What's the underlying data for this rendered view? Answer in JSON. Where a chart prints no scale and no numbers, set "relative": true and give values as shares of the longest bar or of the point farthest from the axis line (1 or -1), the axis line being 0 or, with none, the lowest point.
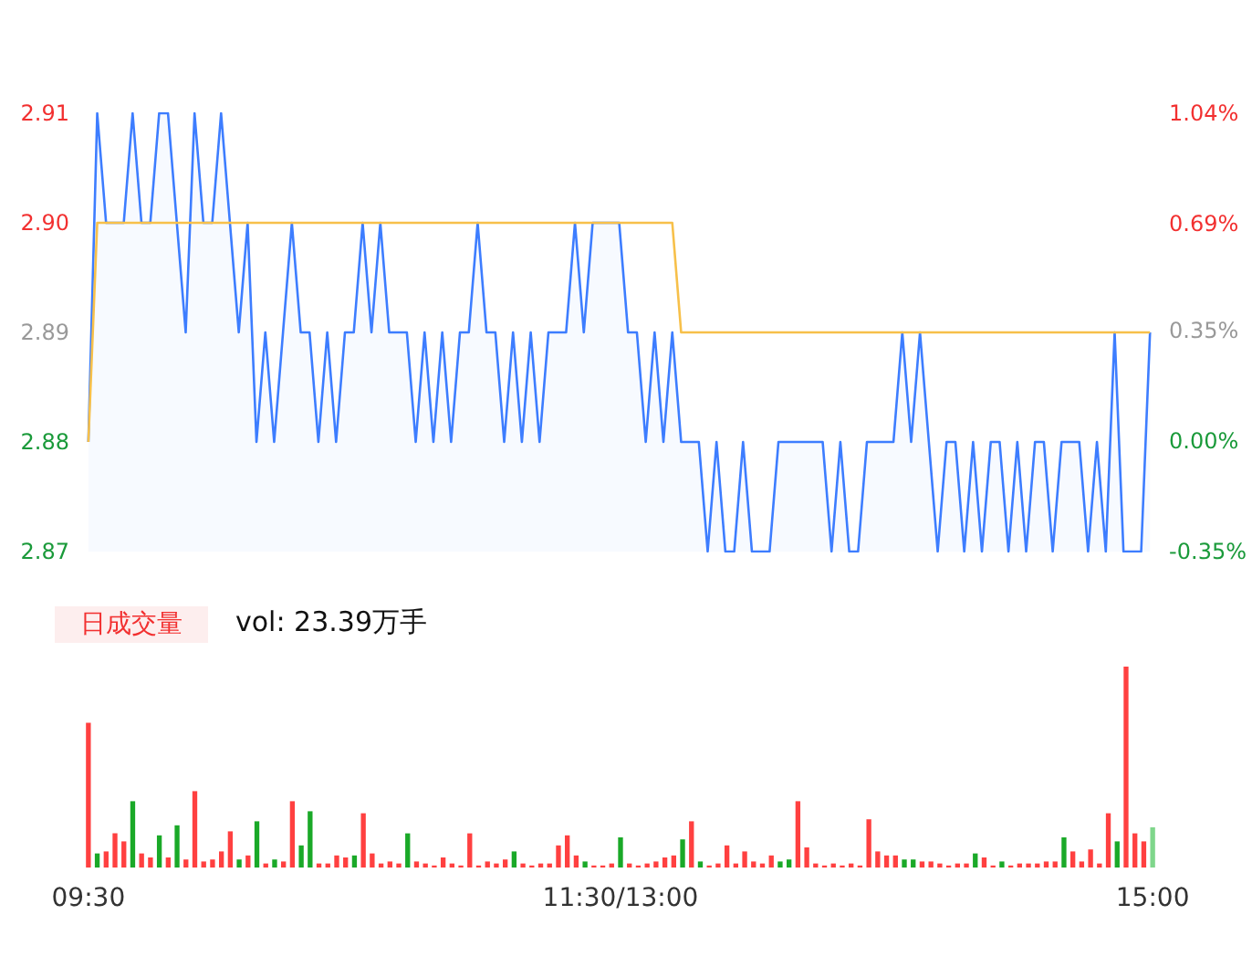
{
  "chart_data": [
    {
      "type": "area",
      "categories": [
        null,
        null,
        null,
        null,
        null,
        null,
        null,
        null,
        null,
        null,
        null,
        null,
        null,
        null,
        null,
        null,
        null,
        null,
        null,
        null,
        null,
        null,
        null,
        null,
        null,
        null,
        null,
        null,
        null,
        null,
        null,
        null,
        null,
        null,
        null,
        null,
        null,
        null,
        null,
        null,
        null,
        null,
        null,
        null,
        null,
        null,
        null,
        null,
        null,
        null,
        null,
        null,
        null,
        null,
        null,
        null,
        null,
        null,
        null,
        null,
        null,
        null,
        null,
        null,
        null,
        null,
        null,
        null,
        null,
        null,
        null,
        null,
        null,
        null,
        null,
        null,
        null,
        null,
        null,
        null,
        null,
        null,
        null,
        null,
        null,
        null,
        null,
        null,
        null,
        null,
        null,
        null,
        null,
        null,
        null,
        null,
        null,
        null,
        null,
        null,
        null,
        null,
        null,
        null,
        null,
        null,
        null,
        null,
        null,
        null,
        null,
        null,
        null,
        null,
        null,
        null,
        null,
        null,
        null,
        null,
        null
      ],
      "series": [
        {
          "color": "#3d7dff",
          "values": [
            2.88,
            2.91,
            2.9,
            2.9,
            2.9,
            2.91,
            2.9,
            2.9,
            2.91,
            2.91,
            2.9,
            2.89,
            2.91,
            2.9,
            2.9,
            2.91,
            2.9,
            2.89,
            2.9,
            2.88,
            2.89,
            2.88,
            2.89,
            2.9,
            2.89,
            2.89,
            2.88,
            2.89,
            2.88,
            2.89,
            2.89,
            2.9,
            2.89,
            2.9,
            2.89,
            2.89,
            2.89,
            2.88,
            2.89,
            2.88,
            2.89,
            2.88,
            2.89,
            2.89,
            2.9,
            2.89,
            2.89,
            2.88,
            2.89,
            2.88,
            2.89,
            2.88,
            2.89,
            2.89,
            2.89,
            2.9,
            2.89,
            2.9,
            2.9,
            2.9,
            2.9,
            2.89,
            2.89,
            2.88,
            2.89,
            2.88,
            2.89,
            2.88,
            2.88,
            2.88,
            2.87,
            2.88,
            2.87,
            2.87,
            2.88,
            2.87,
            2.87,
            2.87,
            2.88,
            2.88,
            2.88,
            2.88,
            2.88,
            2.88,
            2.87,
            2.88,
            2.87,
            2.87,
            2.88,
            2.88,
            2.88,
            2.88,
            2.89,
            2.88,
            2.89,
            2.88,
            2.87,
            2.88,
            2.88,
            2.87,
            2.88,
            2.87,
            2.88,
            2.88,
            2.87,
            2.88,
            2.87,
            2.88,
            2.88,
            2.87,
            2.88,
            2.88,
            2.88,
            2.87,
            2.88,
            2.87,
            2.89,
            2.87,
            2.87,
            2.87,
            2.89
          ]
        },
        {
          "type": "line",
          "color": "#f7c04a",
          "values": [
            2.88,
            2.9,
            2.9,
            2.9,
            2.9,
            2.9,
            2.9,
            2.9,
            2.9,
            2.9,
            2.9,
            2.9,
            2.9,
            2.9,
            2.9,
            2.9,
            2.9,
            2.9,
            2.9,
            2.9,
            2.9,
            2.9,
            2.9,
            2.9,
            2.9,
            2.9,
            2.9,
            2.9,
            2.9,
            2.9,
            2.9,
            2.9,
            2.9,
            2.9,
            2.9,
            2.9,
            2.9,
            2.9,
            2.9,
            2.9,
            2.9,
            2.9,
            2.9,
            2.9,
            2.9,
            2.9,
            2.9,
            2.9,
            2.9,
            2.9,
            2.9,
            2.9,
            2.9,
            2.9,
            2.9,
            2.9,
            2.9,
            2.9,
            2.9,
            2.9,
            2.9,
            2.9,
            2.9,
            2.9,
            2.9,
            2.9,
            2.9,
            2.89,
            2.89,
            2.89,
            2.89,
            2.89,
            2.89,
            2.89,
            2.89,
            2.89,
            2.89,
            2.89,
            2.89,
            2.89,
            2.89,
            2.89,
            2.89,
            2.89,
            2.89,
            2.89,
            2.89,
            2.89,
            2.89,
            2.89,
            2.89,
            2.89,
            2.89,
            2.89,
            2.89,
            2.89,
            2.89,
            2.89,
            2.89,
            2.89,
            2.89,
            2.89,
            2.89,
            2.89,
            2.89,
            2.89,
            2.89,
            2.89,
            2.89,
            2.89,
            2.89,
            2.89,
            2.89,
            2.89,
            2.89,
            2.89,
            2.89,
            2.89,
            2.89,
            2.89,
            2.89
          ]
        }
      ],
      "ylim": [
        2.87,
        2.91
      ],
      "yticks": [
        {
          "value": 2.87,
          "label": "2.87"
        },
        {
          "value": 2.88,
          "label": "2.88"
        },
        {
          "value": 2.89,
          "label": "2.89"
        },
        {
          "value": 2.9,
          "label": "2.90"
        },
        {
          "value": 2.91,
          "label": "2.91"
        }
      ],
      "y2lim": [
        -0.35,
        1.04
      ],
      "y2ticks": [
        {
          "value": -0.35,
          "label": "-0.35%"
        },
        {
          "value": 0,
          "label": "0.00%"
        },
        {
          "value": 0.35,
          "label": "0.35%"
        },
        {
          "value": 0.69,
          "label": "0.69%"
        },
        {
          "value": 1.04,
          "label": "1.04%"
        }
      ],
      "tick_labels": "y",
      "grid": false
    },
    {
      "type": "bar",
      "relative": true,
      "categories": [
        "09:30",
        null,
        null,
        null,
        null,
        null,
        null,
        null,
        null,
        null,
        null,
        null,
        null,
        null,
        null,
        null,
        null,
        null,
        null,
        null,
        null,
        null,
        null,
        null,
        null,
        null,
        null,
        null,
        null,
        null,
        null,
        null,
        null,
        null,
        null,
        null,
        null,
        null,
        null,
        null,
        null,
        null,
        null,
        null,
        null,
        null,
        null,
        null,
        null,
        null,
        null,
        null,
        null,
        null,
        null,
        null,
        null,
        null,
        null,
        null,
        "11:30/13:00",
        null,
        null,
        null,
        null,
        null,
        null,
        null,
        null,
        null,
        null,
        null,
        null,
        null,
        null,
        null,
        null,
        null,
        null,
        null,
        null,
        null,
        null,
        null,
        null,
        null,
        null,
        null,
        null,
        null,
        null,
        null,
        null,
        null,
        null,
        null,
        null,
        null,
        null,
        null,
        null,
        null,
        null,
        null,
        null,
        null,
        null,
        null,
        null,
        null,
        null,
        null,
        null,
        null,
        null,
        null,
        null,
        null,
        null,
        null,
        "15:00"
      ],
      "values": [
        0.72,
        0.07,
        0.08,
        0.17,
        0.13,
        0.33,
        0.07,
        0.05,
        0.16,
        0.05,
        0.21,
        0.04,
        0.38,
        0.03,
        0.04,
        0.08,
        0.18,
        0.04,
        0.06,
        0.23,
        0.02,
        0.04,
        0.03,
        0.33,
        0.11,
        0.28,
        0.02,
        0.02,
        0.06,
        0.05,
        0.06,
        0.27,
        0.07,
        0.02,
        0.03,
        0.02,
        0.17,
        0.03,
        0.02,
        0.01,
        0.05,
        0.02,
        0.01,
        0.17,
        0.01,
        0.03,
        0.02,
        0.04,
        0.08,
        0.02,
        0.01,
        0.02,
        0.02,
        0.11,
        0.16,
        0.06,
        0.03,
        0.01,
        0.01,
        0.02,
        0.15,
        0.02,
        0.01,
        0.02,
        0.03,
        0.05,
        0.06,
        0.14,
        0.23,
        0.03,
        0.01,
        0.02,
        0.11,
        0.02,
        0.08,
        0.03,
        0.02,
        0.06,
        0.03,
        0.04,
        0.33,
        0.1,
        0.02,
        0.01,
        0.02,
        0.01,
        0.02,
        0.01,
        0.24,
        0.08,
        0.06,
        0.06,
        0.04,
        0.04,
        0.03,
        0.03,
        0.02,
        0.01,
        0.02,
        0.02,
        0.07,
        0.05,
        0.01,
        0.03,
        0.01,
        0.02,
        0.02,
        0.02,
        0.03,
        0.03,
        0.15,
        0.08,
        0.03,
        0.09,
        0.02,
        0.27,
        0.13,
        1,
        0.17,
        0.13,
        0.2
      ],
      "colors": [
        "#ff4040",
        "#1aa928",
        "#ff4040",
        "#ff4040",
        "#ff4040",
        "#1aa928",
        "#ff4040",
        "#ff4040",
        "#1aa928",
        "#ff4040",
        "#1aa928",
        "#ff4040",
        "#ff4040",
        "#ff4040",
        "#ff4040",
        "#ff4040",
        "#ff4040",
        "#1aa928",
        "#ff4040",
        "#1aa928",
        "#ff4040",
        "#1aa928",
        "#ff4040",
        "#ff4040",
        "#1aa928",
        "#1aa928",
        "#ff4040",
        "#ff4040",
        "#ff4040",
        "#ff4040",
        "#1aa928",
        "#ff4040",
        "#ff4040",
        "#ff4040",
        "#ff4040",
        "#ff4040",
        "#1aa928",
        "#ff4040",
        "#ff4040",
        "#ff4040",
        "#ff4040",
        "#ff4040",
        "#ff4040",
        "#ff4040",
        "#ff4040",
        "#ff4040",
        "#ff4040",
        "#ff4040",
        "#1aa928",
        "#ff4040",
        "#ff4040",
        "#ff4040",
        "#ff4040",
        "#ff4040",
        "#ff4040",
        "#ff4040",
        "#1aa928",
        "#ff4040",
        "#ff4040",
        "#ff4040",
        "#1aa928",
        "#ff4040",
        "#ff4040",
        "#ff4040",
        "#ff4040",
        "#ff4040",
        "#ff4040",
        "#1aa928",
        "#ff4040",
        "#1aa928",
        "#ff4040",
        "#ff4040",
        "#ff4040",
        "#ff4040",
        "#ff4040",
        "#ff4040",
        "#ff4040",
        "#ff4040",
        "#1aa928",
        "#1aa928",
        "#ff4040",
        "#ff4040",
        "#ff4040",
        "#ff4040",
        "#ff4040",
        "#ff4040",
        "#ff4040",
        "#ff4040",
        "#ff4040",
        "#ff4040",
        "#ff4040",
        "#ff4040",
        "#1aa928",
        "#1aa928",
        "#ff4040",
        "#ff4040",
        "#ff4040",
        "#ff4040",
        "#ff4040",
        "#ff4040",
        "#1aa928",
        "#ff4040",
        "#ff4040",
        "#1aa928",
        "#ff4040",
        "#ff4040",
        "#ff4040",
        "#ff4040",
        "#ff4040",
        "#ff4040",
        "#1aa928",
        "#ff4040",
        "#ff4040",
        "#ff4040",
        "#ff4040",
        "#ff4040",
        "#1aa928",
        "#ff4040",
        "#ff4040",
        "#ff4040",
        "#7fd68b"
      ],
      "annotations": [
        "日成交量",
        "vol: 23.39万手"
      ],
      "grid": false
    }
  ]
}
